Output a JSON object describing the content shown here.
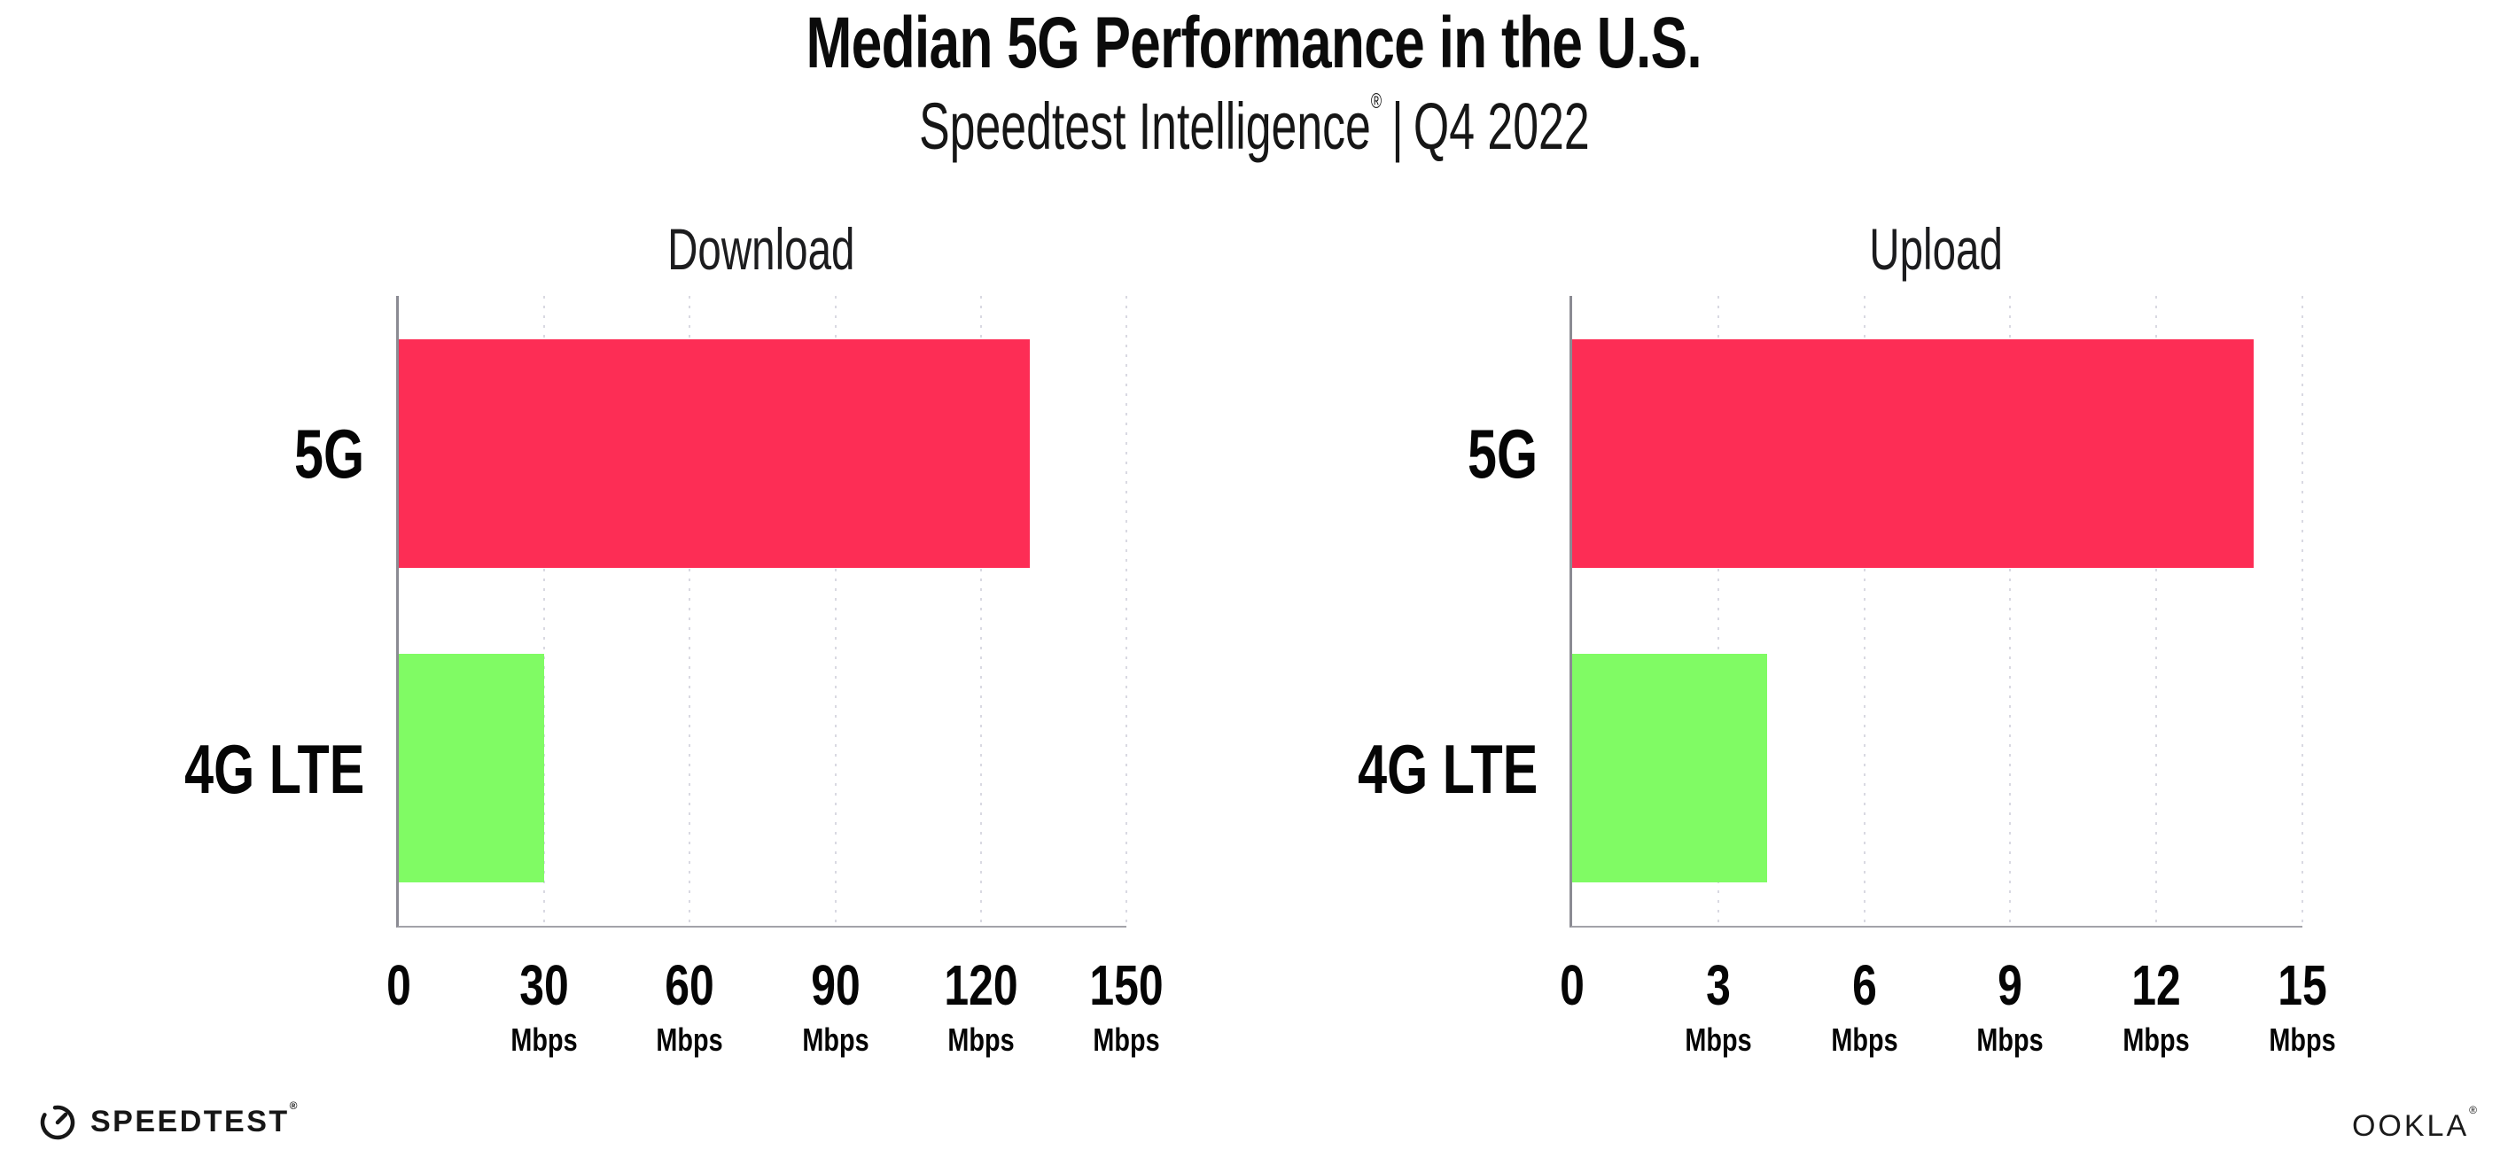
{
  "header": {
    "title": "Median 5G Performance in the U.S.",
    "subtitle": {
      "brand": "Speedtest Intelligence",
      "registered": "®",
      "separator": "|",
      "period": "Q4 2022"
    }
  },
  "colors": {
    "background": "#FFFFFF",
    "bar_5g": "#FD2D55",
    "bar_4g": "#80FB64",
    "y_axis": "#8B8B93",
    "x_axis": "#A3A3A9",
    "grid_dot": "#D9D9E2",
    "text": "#000000"
  },
  "chart_data": [
    {
      "type": "bar",
      "orientation": "horizontal",
      "title": "Download",
      "categories": [
        "5G",
        "4G LTE"
      ],
      "values": [
        130,
        30
      ],
      "unit": "Mbps",
      "xlim": [
        0,
        150
      ],
      "ticks": [
        0,
        30,
        60,
        90,
        120,
        150
      ],
      "tick_unit": "Mbps",
      "bar_colors": [
        "#FD2D55",
        "#80FB64"
      ],
      "grid": "dotted-vertical",
      "legend": "none"
    },
    {
      "type": "bar",
      "orientation": "horizontal",
      "title": "Upload",
      "categories": [
        "5G",
        "4G LTE"
      ],
      "values": [
        14,
        4
      ],
      "unit": "Mbps",
      "xlim": [
        0,
        15
      ],
      "ticks": [
        0,
        3,
        6,
        9,
        12,
        15
      ],
      "tick_unit": "Mbps",
      "bar_colors": [
        "#FD2D55",
        "#80FB64"
      ],
      "grid": "dotted-vertical",
      "legend": "none"
    }
  ],
  "footer": {
    "speedtest_label": "SPEEDTEST",
    "speedtest_reg": "®",
    "ookla_label": "OOKLA",
    "ookla_reg": "®"
  }
}
